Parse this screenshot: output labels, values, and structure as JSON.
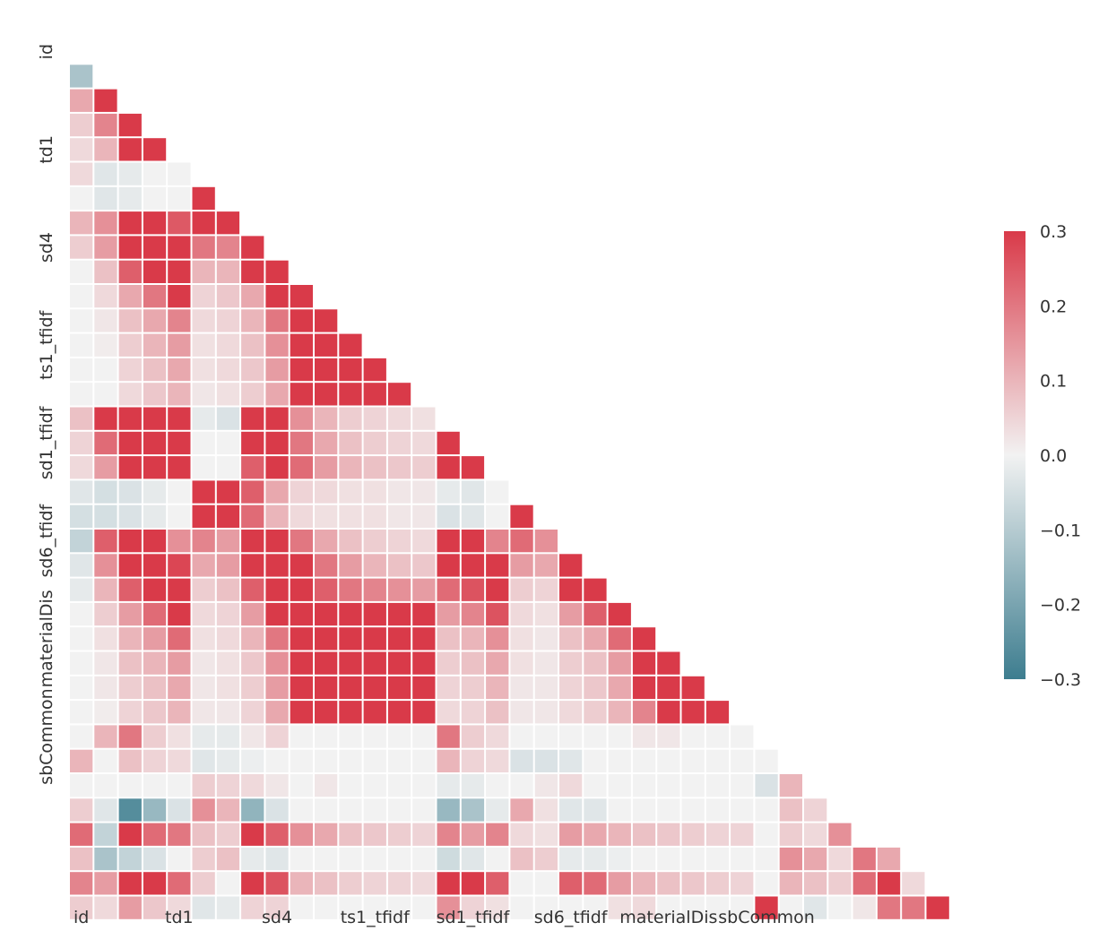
{
  "chart_data": {
    "type": "heatmap",
    "mask": "upper-triangle",
    "labels": [
      "id",
      "",
      "",
      "",
      "td1",
      "",
      "",
      "",
      "sd4",
      "",
      "",
      "",
      "ts1_tfidf",
      "",
      "",
      "",
      "sd1_tfidf",
      "",
      "",
      "",
      "sd6_tfidf",
      "",
      "",
      "",
      "materialDis",
      "",
      "",
      "",
      "sbCommon"
    ],
    "x_tick_labels": [
      "id",
      "td1",
      "sd4",
      "ts1_tfidf",
      "sd1_tfidf",
      "sd6_tfidf",
      "materialDis",
      "sbCommon"
    ],
    "y_tick_labels": [
      "id",
      "td1",
      "sd4",
      "ts1_tfidf",
      "sd1_tfidf",
      "sd6_tfidf",
      "materialDis",
      "sbCommon"
    ],
    "vmin": -0.3,
    "vmax": 0.3,
    "colorbar_ticks": [
      "0.3",
      "0.2",
      "0.1",
      "0.0",
      "−0.1",
      "−0.2",
      "−0.3"
    ],
    "colormap": {
      "negative": "#3d7d8f",
      "center": "#f2f2f2",
      "positive": "#d93a49"
    },
    "values": [
      [],
      [
        -0.12
      ],
      [
        0.12,
        0.3
      ],
      [
        0.06,
        0.18,
        0.3
      ],
      [
        0.04,
        0.1,
        0.3,
        0.3
      ],
      [
        0.04,
        -0.03,
        -0.02,
        0.0,
        0.0
      ],
      [
        0.0,
        -0.03,
        -0.02,
        0.0,
        0.0,
        0.3
      ],
      [
        0.1,
        0.16,
        0.3,
        0.3,
        0.25,
        0.3,
        0.3
      ],
      [
        0.06,
        0.14,
        0.3,
        0.3,
        0.3,
        0.2,
        0.18,
        0.3
      ],
      [
        0.0,
        0.08,
        0.24,
        0.3,
        0.3,
        0.1,
        0.1,
        0.3,
        0.3
      ],
      [
        0.0,
        0.04,
        0.12,
        0.2,
        0.3,
        0.05,
        0.07,
        0.12,
        0.3,
        0.3
      ],
      [
        0.0,
        0.02,
        0.08,
        0.12,
        0.18,
        0.04,
        0.05,
        0.1,
        0.2,
        0.3,
        0.3
      ],
      [
        0.0,
        0.01,
        0.06,
        0.1,
        0.14,
        0.03,
        0.04,
        0.08,
        0.16,
        0.3,
        0.3,
        0.3
      ],
      [
        0.0,
        0.0,
        0.05,
        0.08,
        0.12,
        0.03,
        0.04,
        0.07,
        0.14,
        0.3,
        0.3,
        0.3,
        0.3
      ],
      [
        0.0,
        0.0,
        0.04,
        0.07,
        0.1,
        0.02,
        0.03,
        0.06,
        0.12,
        0.3,
        0.3,
        0.3,
        0.3,
        0.3
      ],
      [
        0.08,
        0.3,
        0.3,
        0.3,
        0.3,
        -0.02,
        -0.04,
        0.3,
        0.3,
        0.16,
        0.1,
        0.06,
        0.05,
        0.04,
        0.03
      ],
      [
        0.05,
        0.22,
        0.3,
        0.3,
        0.3,
        0.0,
        0.0,
        0.3,
        0.3,
        0.2,
        0.12,
        0.08,
        0.06,
        0.05,
        0.04,
        0.3
      ],
      [
        0.04,
        0.14,
        0.3,
        0.3,
        0.3,
        0.0,
        0.0,
        0.24,
        0.3,
        0.22,
        0.14,
        0.1,
        0.08,
        0.07,
        0.06,
        0.3,
        0.3
      ],
      [
        -0.03,
        -0.05,
        -0.04,
        -0.02,
        0.0,
        0.3,
        0.3,
        0.24,
        0.12,
        0.05,
        0.04,
        0.03,
        0.03,
        0.02,
        0.02,
        -0.02,
        -0.03,
        0.0
      ],
      [
        -0.05,
        -0.05,
        -0.04,
        -0.02,
        0.0,
        0.3,
        0.3,
        0.22,
        0.1,
        0.04,
        0.03,
        0.03,
        0.03,
        0.02,
        0.02,
        -0.04,
        -0.03,
        0.0,
        0.3
      ],
      [
        -0.08,
        0.24,
        0.3,
        0.3,
        0.16,
        0.18,
        0.14,
        0.3,
        0.3,
        0.2,
        0.12,
        0.08,
        0.06,
        0.05,
        0.04,
        0.3,
        0.3,
        0.18,
        0.22,
        0.16
      ],
      [
        -0.03,
        0.16,
        0.3,
        0.3,
        0.28,
        0.12,
        0.14,
        0.3,
        0.3,
        0.3,
        0.2,
        0.14,
        0.1,
        0.08,
        0.07,
        0.3,
        0.3,
        0.3,
        0.14,
        0.12,
        0.3
      ],
      [
        -0.02,
        0.1,
        0.24,
        0.3,
        0.3,
        0.06,
        0.08,
        0.24,
        0.3,
        0.3,
        0.24,
        0.2,
        0.18,
        0.16,
        0.14,
        0.22,
        0.26,
        0.3,
        0.06,
        0.05,
        0.3,
        0.3
      ],
      [
        0.0,
        0.06,
        0.14,
        0.22,
        0.3,
        0.04,
        0.05,
        0.14,
        0.3,
        0.3,
        0.3,
        0.3,
        0.3,
        0.3,
        0.3,
        0.14,
        0.18,
        0.26,
        0.04,
        0.03,
        0.14,
        0.24,
        0.3
      ],
      [
        0.0,
        0.03,
        0.1,
        0.14,
        0.22,
        0.03,
        0.04,
        0.1,
        0.2,
        0.3,
        0.3,
        0.3,
        0.3,
        0.3,
        0.3,
        0.08,
        0.1,
        0.16,
        0.03,
        0.02,
        0.08,
        0.12,
        0.22,
        0.3
      ],
      [
        0.0,
        0.02,
        0.08,
        0.1,
        0.14,
        0.02,
        0.03,
        0.07,
        0.16,
        0.3,
        0.3,
        0.3,
        0.3,
        0.3,
        0.3,
        0.06,
        0.08,
        0.12,
        0.03,
        0.02,
        0.06,
        0.08,
        0.14,
        0.3,
        0.3
      ],
      [
        0.0,
        0.02,
        0.06,
        0.08,
        0.12,
        0.02,
        0.03,
        0.06,
        0.14,
        0.3,
        0.3,
        0.3,
        0.3,
        0.3,
        0.3,
        0.05,
        0.06,
        0.1,
        0.02,
        0.02,
        0.05,
        0.07,
        0.12,
        0.3,
        0.3,
        0.3
      ],
      [
        0.0,
        0.01,
        0.05,
        0.07,
        0.1,
        0.02,
        0.02,
        0.05,
        0.12,
        0.3,
        0.3,
        0.3,
        0.3,
        0.3,
        0.3,
        0.04,
        0.05,
        0.08,
        0.02,
        0.02,
        0.04,
        0.06,
        0.1,
        0.18,
        0.3,
        0.3,
        0.3
      ],
      [
        0.0,
        0.1,
        0.2,
        0.06,
        0.03,
        -0.02,
        -0.02,
        0.02,
        0.05,
        0.0,
        0.0,
        0.0,
        0.0,
        0.0,
        0.0,
        0.2,
        0.06,
        0.04,
        0.0,
        0.0,
        0.0,
        0.0,
        0.0,
        0.02,
        0.02,
        0.0,
        0.0,
        0.0
      ],
      [
        0.1,
        0.0,
        0.08,
        0.05,
        0.04,
        -0.03,
        -0.02,
        -0.01,
        0.0,
        0.0,
        0.0,
        0.0,
        0.0,
        0.0,
        0.0,
        0.1,
        0.05,
        0.04,
        -0.04,
        -0.04,
        -0.03,
        0.0,
        0.0,
        0.0,
        0.0,
        0.0,
        0.0,
        0.0,
        0.0
      ],
      [
        0.0,
        0.0,
        0.0,
        0.0,
        0.0,
        0.06,
        0.05,
        0.04,
        0.02,
        0.0,
        0.02,
        0.0,
        0.0,
        0.0,
        0.0,
        -0.02,
        -0.02,
        0.0,
        0.0,
        0.02,
        0.04,
        0.0,
        0.0,
        0.0,
        0.0,
        0.0,
        0.0,
        0.0,
        -0.04,
        0.1
      ],
      [
        0.06,
        -0.03,
        -0.26,
        -0.15,
        -0.04,
        0.16,
        0.1,
        -0.16,
        -0.04,
        0.0,
        0.0,
        0.0,
        0.0,
        0.0,
        0.0,
        -0.15,
        -0.12,
        -0.02,
        0.12,
        0.03,
        -0.03,
        -0.03,
        0.0,
        0.0,
        0.0,
        0.0,
        0.0,
        0.0,
        0.0,
        0.08,
        0.05
      ],
      [
        0.22,
        -0.08,
        0.3,
        0.22,
        0.2,
        0.08,
        0.06,
        0.3,
        0.24,
        0.16,
        0.12,
        0.08,
        0.07,
        0.06,
        0.05,
        0.18,
        0.14,
        0.18,
        0.04,
        0.03,
        0.14,
        0.12,
        0.1,
        0.08,
        0.07,
        0.06,
        0.05,
        0.05,
        0.0,
        0.06,
        0.04,
        0.16
      ],
      [
        0.08,
        -0.12,
        -0.08,
        -0.04,
        0.0,
        0.06,
        0.08,
        -0.02,
        -0.03,
        0.0,
        0.0,
        0.0,
        0.0,
        0.0,
        0.0,
        -0.06,
        -0.03,
        0.0,
        0.08,
        0.06,
        -0.02,
        -0.02,
        -0.01,
        0.0,
        0.0,
        0.0,
        0.0,
        0.0,
        0.0,
        0.16,
        0.12,
        0.04,
        0.2,
        0.12
      ],
      [
        0.18,
        0.14,
        0.3,
        0.3,
        0.22,
        0.06,
        0.0,
        0.3,
        0.26,
        0.1,
        0.08,
        0.06,
        0.05,
        0.05,
        0.04,
        0.3,
        0.3,
        0.24,
        0.0,
        0.0,
        0.24,
        0.22,
        0.14,
        0.1,
        0.08,
        0.07,
        0.06,
        0.05,
        0.0,
        0.1,
        0.08,
        0.06,
        0.22,
        0.3,
        0.04
      ],
      [
        0.06,
        0.04,
        0.14,
        0.07,
        0.04,
        -0.03,
        -0.02,
        0.05,
        0.05,
        0.0,
        0.0,
        0.0,
        0.0,
        0.0,
        0.0,
        0.16,
        0.05,
        0.03,
        0.0,
        0.0,
        0.0,
        0.0,
        0.03,
        0.04,
        0.0,
        0.0,
        0.0,
        0.0,
        0.3,
        0.0,
        -0.03,
        0.0,
        0.02,
        0.2,
        0.2,
        0.3
      ]
    ]
  }
}
